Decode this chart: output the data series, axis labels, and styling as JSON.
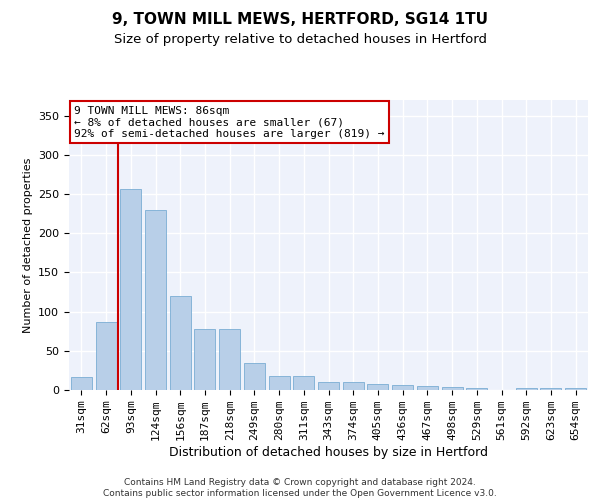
{
  "title1": "9, TOWN MILL MEWS, HERTFORD, SG14 1TU",
  "title2": "Size of property relative to detached houses in Hertford",
  "xlabel": "Distribution of detached houses by size in Hertford",
  "ylabel": "Number of detached properties",
  "categories": [
    "31sqm",
    "62sqm",
    "93sqm",
    "124sqm",
    "156sqm",
    "187sqm",
    "218sqm",
    "249sqm",
    "280sqm",
    "311sqm",
    "343sqm",
    "374sqm",
    "405sqm",
    "436sqm",
    "467sqm",
    "498sqm",
    "529sqm",
    "561sqm",
    "592sqm",
    "623sqm",
    "654sqm"
  ],
  "values": [
    17,
    87,
    257,
    230,
    120,
    78,
    78,
    35,
    18,
    18,
    10,
    10,
    8,
    7,
    5,
    4,
    3,
    0,
    2,
    2,
    2
  ],
  "bar_color": "#b8cfe8",
  "bar_edge_color": "#7aadd4",
  "vline_color": "#cc0000",
  "annotation_text": "9 TOWN MILL MEWS: 86sqm\n← 8% of detached houses are smaller (67)\n92% of semi-detached houses are larger (819) →",
  "annotation_box_color": "#ffffff",
  "annotation_box_edge": "#cc0000",
  "ylim": [
    0,
    370
  ],
  "yticks": [
    0,
    50,
    100,
    150,
    200,
    250,
    300,
    350
  ],
  "footer": "Contains HM Land Registry data © Crown copyright and database right 2024.\nContains public sector information licensed under the Open Government Licence v3.0.",
  "bg_color": "#eef2fb",
  "grid_color": "#ffffff",
  "title1_fontsize": 11,
  "title2_fontsize": 9.5,
  "xlabel_fontsize": 9,
  "ylabel_fontsize": 8,
  "footer_fontsize": 6.5,
  "tick_fontsize": 8,
  "annot_fontsize": 8
}
